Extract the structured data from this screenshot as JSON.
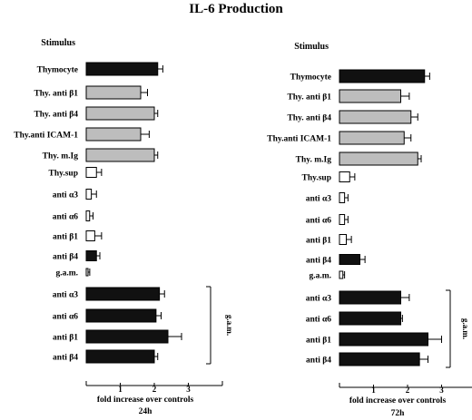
{
  "title": "IL-6 Production",
  "colors": {
    "black": "#111111",
    "gray": "#bdbdbd",
    "white": "#ffffff",
    "ink": "#000000"
  },
  "chart_data": [
    {
      "type": "bar",
      "orientation": "horizontal",
      "panel_label": "Stimulus",
      "xlabel": "fold increase over controls",
      "time_label": "24h",
      "ticks": [
        "1",
        "2",
        "3"
      ],
      "xlim": [
        0,
        4
      ],
      "bracket_label": "g.a.m.",
      "categories": [
        "Thymocyte",
        "Thy. anti β1",
        "Thy. anti β4",
        "Thy.anti ICAM-1",
        "Thy. m.Ig",
        "Thy.sup",
        "anti α3",
        "anti α6",
        "anti β1",
        "anti β4",
        "g.a.m.",
        "anti α3",
        "anti α6",
        "anti β1",
        "anti β4"
      ],
      "values": [
        2.1,
        1.6,
        2.0,
        1.6,
        2.0,
        0.3,
        0.15,
        0.1,
        0.25,
        0.3,
        0.05,
        2.15,
        2.05,
        2.4,
        2.0
      ],
      "errors": [
        0.15,
        0.2,
        0.1,
        0.25,
        0.1,
        0.15,
        0.15,
        0.1,
        0.2,
        0.1,
        0.05,
        0.15,
        0.15,
        0.4,
        0.1
      ],
      "fills": [
        "black",
        "gray",
        "gray",
        "gray",
        "gray",
        "white",
        "white",
        "white",
        "white",
        "black",
        "white",
        "black",
        "black",
        "black",
        "black"
      ],
      "bracket_rows": [
        11,
        14
      ]
    },
    {
      "type": "bar",
      "orientation": "horizontal",
      "panel_label": "Stimulus",
      "xlabel": "fold increase over controls",
      "time_label": "72h",
      "ticks": [
        "1",
        "2",
        "3"
      ],
      "xlim": [
        0,
        4
      ],
      "bracket_label": "g.a.m.",
      "categories": [
        "Thymocyte",
        "Thy. anti β1",
        "Thy. anti β4",
        "Thy.anti ICAM-1",
        "Thy. m.Ig",
        "Thy.sup",
        "anti α3",
        "anti α6",
        "anti β1",
        "anti β4",
        "g.a.m.",
        "anti α3",
        "anti α6",
        "anti β1",
        "anti β4"
      ],
      "values": [
        2.5,
        1.8,
        2.1,
        1.9,
        2.3,
        0.3,
        0.15,
        0.15,
        0.2,
        0.6,
        0.1,
        1.8,
        1.8,
        2.6,
        2.35
      ],
      "errors": [
        0.15,
        0.25,
        0.2,
        0.2,
        0.1,
        0.15,
        0.1,
        0.1,
        0.15,
        0.15,
        0.05,
        0.25,
        0.05,
        0.4,
        0.25
      ],
      "fills": [
        "black",
        "gray",
        "gray",
        "gray",
        "gray",
        "white",
        "white",
        "white",
        "white",
        "black",
        "white",
        "black",
        "black",
        "black",
        "black"
      ],
      "bracket_rows": [
        11,
        14
      ]
    }
  ]
}
